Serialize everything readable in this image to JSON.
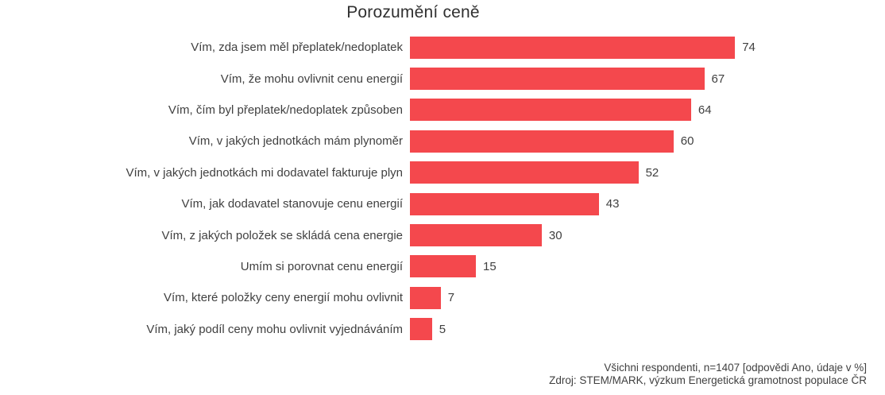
{
  "title": "Porozumění ceně",
  "footer": {
    "line1": "Všichni respondenti, n=1407 [odpovědi Ano, údaje v %]",
    "line2": "Zdroj: STEM/MARK, výzkum Energetická gramotnost populace ČR"
  },
  "colors": {
    "bar": "#F4484D",
    "text": "#404040",
    "title": "#303030"
  },
  "chart_data": {
    "type": "bar",
    "orientation": "horizontal",
    "title": "Porozumění ceně",
    "categories": [
      "Vím, zda jsem měl přeplatek/nedoplatek",
      "Vím, že mohu ovlivnit cenu energií",
      "Vím, čím byl přeplatek/nedoplatek způsoben",
      "Vím, v jakých jednotkách mám plynoměr",
      "Vím, v jakých jednotkách mi dodavatel fakturuje plyn",
      "Vím, jak dodavatel stanovuje cenu energií",
      "Vím, z jakých položek se skládá cena energie",
      "Umím si porovnat cenu energií",
      "Vím, které položky ceny energií mohu ovlivnit",
      "Vím, jaký podíl ceny mohu ovlivnit vyjednáváním"
    ],
    "values": [
      74,
      67,
      64,
      60,
      52,
      43,
      30,
      15,
      7,
      5
    ],
    "unit": "%",
    "value_labels": true,
    "bar_color": "#F4484D",
    "grid": false,
    "legend": false,
    "axes_visible": false
  }
}
